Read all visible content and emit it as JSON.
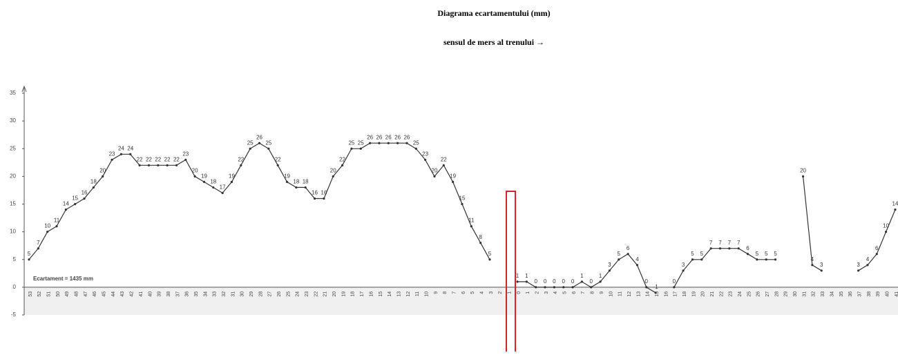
{
  "chart_data": {
    "type": "line",
    "title": "Diagrama ecartamentului (mm)",
    "subtitle": "sensul de mers al trenului →",
    "annotation": "Ecartament = 1435 mm",
    "color": "#333333",
    "categories": [
      "53",
      "52",
      "51",
      "50",
      "49",
      "48",
      "47",
      "46",
      "45",
      "44",
      "43",
      "42",
      "41",
      "40",
      "39",
      "38",
      "37",
      "36",
      "35",
      "34",
      "33",
      "32",
      "31",
      "30",
      "29",
      "28",
      "27",
      "26",
      "25",
      "24",
      "23",
      "22",
      "21",
      "20",
      "19",
      "18",
      "17",
      "16",
      "15",
      "14",
      "13",
      "12",
      "11",
      "10",
      "9",
      "8",
      "7",
      "6",
      "5",
      "4",
      "3",
      "2",
      "1",
      "0",
      "1",
      "2",
      "3",
      "4",
      "5",
      "6",
      "7",
      "8",
      "9",
      "10",
      "11",
      "12",
      "13",
      "14",
      "15",
      "16",
      "17",
      "18",
      "19",
      "20",
      "21",
      "22",
      "23",
      "24",
      "25",
      "26",
      "27",
      "28",
      "29",
      "30",
      "31",
      "32",
      "33",
      "34",
      "35",
      "36",
      "37",
      "38",
      "39",
      "40",
      "41"
    ],
    "values": [
      5,
      7,
      10,
      11,
      14,
      15,
      16,
      18,
      20,
      23,
      24,
      24,
      22,
      22,
      22,
      22,
      22,
      23,
      20,
      19,
      18,
      17,
      19,
      22,
      25,
      26,
      25,
      22,
      19,
      18,
      18,
      16,
      16,
      20,
      22,
      25,
      25,
      26,
      26,
      26,
      26,
      26,
      25,
      23,
      20,
      22,
      19,
      15,
      11,
      8,
      5,
      null,
      null,
      1,
      1,
      0,
      0,
      0,
      0,
      0,
      1,
      0,
      1,
      3,
      5,
      6,
      4,
      0,
      -1,
      null,
      0,
      3,
      5,
      5,
      7,
      7,
      7,
      7,
      6,
      5,
      5,
      5,
      null,
      null,
      20,
      4,
      3,
      null,
      null,
      null,
      3,
      4,
      6,
      10,
      14
    ],
    "ylim": [
      -5,
      35
    ],
    "yticks": [
      -5,
      0,
      5,
      10,
      15,
      20,
      25,
      30,
      35
    ]
  }
}
